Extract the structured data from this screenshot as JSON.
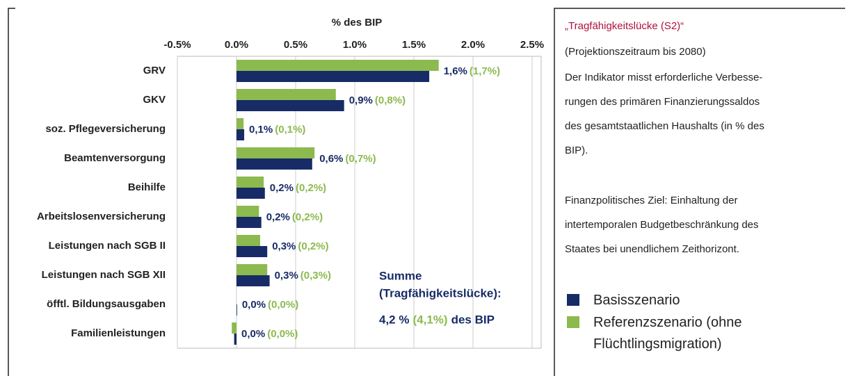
{
  "chart_data": {
    "type": "bar",
    "orientation": "horizontal",
    "xlabel": "% des BIP",
    "categories": [
      "GRV",
      "GKV",
      "soz. Pflegeversicherung",
      "Beamtenversorgung",
      "Beihilfe",
      "Arbeitslosenversicherung",
      "Leistungen nach SGB II",
      "Leistungen nach SGB XII",
      "öfftl. Bildungsausgaben",
      "Familienleistungen"
    ],
    "series": [
      {
        "name": "Referenzszenario (ohne Flüchtlingsmigration)",
        "color": "#8cba4e",
        "values": [
          1.71,
          0.84,
          0.06,
          0.66,
          0.23,
          0.19,
          0.2,
          0.26,
          0.0,
          -0.04
        ],
        "value_labels": [
          "(1,7%)",
          "(0,8%)",
          "(0,1%)",
          "(0,7%)",
          "(0,2%)",
          "(0,2%)",
          "(0,2%)",
          "(0,3%)",
          "(0,0%)",
          "(0,0%)"
        ]
      },
      {
        "name": "Basisszenario",
        "color": "#172b66",
        "values": [
          1.63,
          0.91,
          0.065,
          0.64,
          0.24,
          0.21,
          0.26,
          0.28,
          0.005,
          -0.02
        ],
        "value_labels": [
          "1,6%",
          "0,9%",
          "0,1%",
          "0,6%",
          "0,2%",
          "0,2%",
          "0,3%",
          "0,3%",
          "0,0%",
          "0,0%"
        ]
      }
    ],
    "xlim": [
      -0.5,
      2.5
    ],
    "xticks": [
      {
        "value": -0.5,
        "label": "-0.5%"
      },
      {
        "value": 0.0,
        "label": "0.0%"
      },
      {
        "value": 0.5,
        "label": "0.5%"
      },
      {
        "value": 1.0,
        "label": "1.0%"
      },
      {
        "value": 1.5,
        "label": "1.5%"
      },
      {
        "value": 2.0,
        "label": "2.0%"
      },
      {
        "value": 2.5,
        "label": "2.5%"
      }
    ],
    "grid": true,
    "annotation": {
      "lines": [
        "Summe",
        "(Tragfähigkeitslücke):"
      ],
      "total": [
        "4,2 %",
        "(4,1%)",
        "des BIP"
      ]
    }
  },
  "side_panel": {
    "title": "„Tragfähigkeitslücke (S2)“",
    "subtitle": "(Projektionszeitraum bis 2080)",
    "paragraphs": [
      [
        "Der Indikator misst erforderliche Verbesse-",
        "rungen des primären Finanzierungssaldos",
        "des gesamtstaatlichen Haushalts (in % des",
        "BIP)."
      ],
      [
        "Finanzpolitisches Ziel: Einhaltung der",
        "intertemporalen Budgetbeschränkung des",
        "Staates bei unendlichem Zeithorizont."
      ]
    ]
  }
}
